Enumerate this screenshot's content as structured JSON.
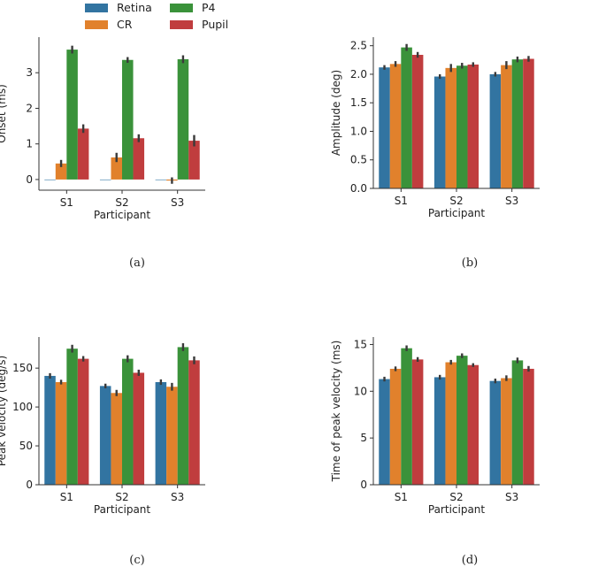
{
  "legend": {
    "entries": [
      {
        "label": "Retina",
        "color": "#3274a1"
      },
      {
        "label": "CR",
        "color": "#e1812c"
      },
      {
        "label": "P4",
        "color": "#3a923a"
      },
      {
        "label": "Pupil",
        "color": "#c03d3e"
      }
    ]
  },
  "chart_data": [
    {
      "id": "a",
      "type": "bar",
      "caption": "(a)",
      "xlabel": "Participant",
      "ylabel": "Onset (ms)",
      "categories": [
        "S1",
        "S2",
        "S3"
      ],
      "ylim": [
        -0.3,
        4.0
      ],
      "yticks": [
        0,
        1,
        2,
        3
      ],
      "ytick_labels": [
        "0",
        "1",
        "2",
        "3"
      ],
      "series": [
        {
          "name": "Retina",
          "values": [
            0.0,
            0.0,
            0.0
          ],
          "err": [
            0.0,
            0.0,
            0.0
          ]
        },
        {
          "name": "CR",
          "values": [
            0.45,
            0.62,
            -0.03
          ],
          "err": [
            0.1,
            0.13,
            0.09
          ]
        },
        {
          "name": "P4",
          "values": [
            3.65,
            3.36,
            3.38
          ],
          "err": [
            0.11,
            0.08,
            0.11
          ]
        },
        {
          "name": "Pupil",
          "values": [
            1.43,
            1.16,
            1.09
          ],
          "err": [
            0.12,
            0.11,
            0.16
          ]
        }
      ]
    },
    {
      "id": "b",
      "type": "bar",
      "caption": "(b)",
      "xlabel": "Participant",
      "ylabel": "Amplitude (deg)",
      "categories": [
        "S1",
        "S2",
        "S3"
      ],
      "ylim": [
        0.0,
        2.65
      ],
      "yticks": [
        0.0,
        0.5,
        1.0,
        1.5,
        2.0,
        2.5
      ],
      "ytick_labels": [
        "0.0",
        "0.5",
        "1.0",
        "1.5",
        "2.0",
        "2.5"
      ],
      "series": [
        {
          "name": "Retina",
          "values": [
            2.12,
            1.96,
            2.0
          ],
          "err": [
            0.04,
            0.04,
            0.04
          ]
        },
        {
          "name": "CR",
          "values": [
            2.18,
            2.11,
            2.16
          ],
          "err": [
            0.05,
            0.07,
            0.07
          ]
        },
        {
          "name": "P4",
          "values": [
            2.47,
            2.15,
            2.26
          ],
          "err": [
            0.06,
            0.05,
            0.05
          ]
        },
        {
          "name": "Pupil",
          "values": [
            2.34,
            2.17,
            2.27
          ],
          "err": [
            0.05,
            0.04,
            0.05
          ]
        }
      ]
    },
    {
      "id": "c",
      "type": "bar",
      "caption": "(c)",
      "xlabel": "Participant",
      "ylabel": "Peak velocity (deg/s)",
      "categories": [
        "S1",
        "S2",
        "S3"
      ],
      "ylim": [
        0,
        190
      ],
      "yticks": [
        0,
        50,
        100,
        150
      ],
      "ytick_labels": [
        "0",
        "50",
        "100",
        "150"
      ],
      "series": [
        {
          "name": "Retina",
          "values": [
            140,
            127,
            132
          ],
          "err": [
            3.5,
            3,
            3.5
          ]
        },
        {
          "name": "CR",
          "values": [
            132,
            118,
            126
          ],
          "err": [
            3,
            4,
            5
          ]
        },
        {
          "name": "P4",
          "values": [
            175,
            162,
            177
          ],
          "err": [
            5,
            4.5,
            5
          ]
        },
        {
          "name": "Pupil",
          "values": [
            162,
            144,
            160
          ],
          "err": [
            3.5,
            4,
            5
          ]
        }
      ]
    },
    {
      "id": "d",
      "type": "bar",
      "caption": "(d)",
      "xlabel": "Participant",
      "ylabel": "Time of peak velocity (ms)",
      "categories": [
        "S1",
        "S2",
        "S3"
      ],
      "ylim": [
        0,
        15.8
      ],
      "yticks": [
        0,
        5,
        10,
        15
      ],
      "ytick_labels": [
        "0",
        "5",
        "10",
        "15"
      ],
      "series": [
        {
          "name": "Retina",
          "values": [
            11.3,
            11.5,
            11.1
          ],
          "err": [
            0.25,
            0.25,
            0.25
          ]
        },
        {
          "name": "CR",
          "values": [
            12.4,
            13.1,
            11.4
          ],
          "err": [
            0.25,
            0.25,
            0.3
          ]
        },
        {
          "name": "P4",
          "values": [
            14.6,
            13.8,
            13.3
          ],
          "err": [
            0.3,
            0.25,
            0.3
          ]
        },
        {
          "name": "Pupil",
          "values": [
            13.4,
            12.8,
            12.4
          ],
          "err": [
            0.25,
            0.2,
            0.3
          ]
        }
      ]
    }
  ]
}
